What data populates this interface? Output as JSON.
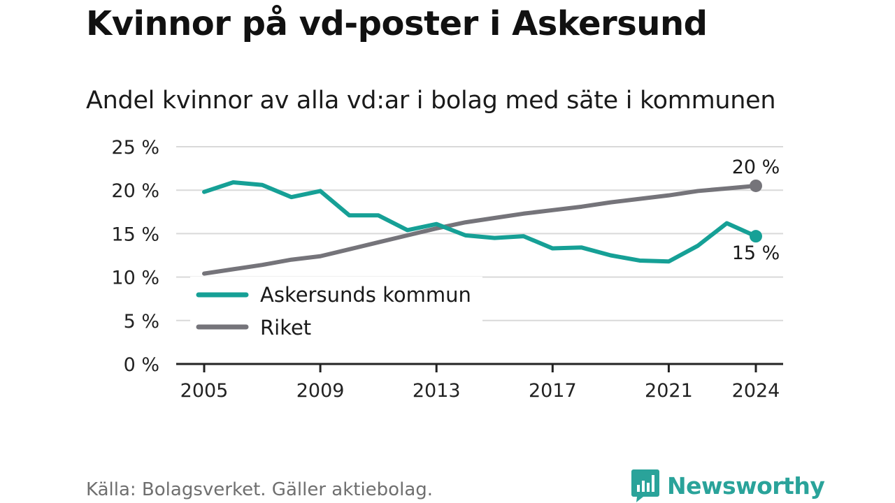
{
  "header": {
    "title": "Kvinnor på vd-poster i Askersund",
    "subtitle": "Andel kvinnor av alla vd:ar i bolag med säte i kommunen"
  },
  "footer": {
    "source": "Källa: Bolagsverket. Gäller aktiebolag.",
    "logo_text": "Newsworthy",
    "logo_icon": "bar-chart-speech-bubble-icon"
  },
  "colors": {
    "askersund": "#16a096",
    "riket": "#75747a",
    "grid": "#d9d9d9",
    "axis": "#222222",
    "brand": "#2aa39a"
  },
  "chart_data": {
    "type": "line",
    "title": "Kvinnor på vd-poster i Askersund",
    "subtitle": "Andel kvinnor av alla vd:ar i bolag med säte i kommunen",
    "x": [
      2005,
      2006,
      2007,
      2008,
      2009,
      2010,
      2011,
      2012,
      2013,
      2014,
      2015,
      2016,
      2017,
      2018,
      2019,
      2020,
      2021,
      2022,
      2023,
      2024
    ],
    "x_ticks": [
      2005,
      2009,
      2013,
      2017,
      2021,
      2024
    ],
    "y_ticks": [
      0,
      5,
      10,
      15,
      20,
      25
    ],
    "y_tick_labels": [
      "0 %",
      "5 %",
      "10 %",
      "15 %",
      "20 %",
      "25 %"
    ],
    "ylim": [
      0,
      25
    ],
    "grid": true,
    "legend_position": "bottom-left",
    "series": [
      {
        "name": "Askersunds kommun",
        "color": "#16a096",
        "values": [
          19.8,
          20.9,
          20.6,
          19.2,
          19.9,
          17.1,
          17.1,
          15.4,
          16.1,
          14.8,
          14.5,
          14.7,
          13.3,
          13.4,
          12.5,
          11.9,
          11.8,
          13.6,
          16.2,
          14.7
        ],
        "end_label": "15 %"
      },
      {
        "name": "Riket",
        "color": "#75747a",
        "values": [
          10.4,
          10.9,
          11.4,
          12.0,
          12.4,
          13.2,
          14.0,
          14.8,
          15.6,
          16.3,
          16.8,
          17.3,
          17.7,
          18.1,
          18.6,
          19.0,
          19.4,
          19.9,
          20.2,
          20.5
        ],
        "end_label": "20 %"
      }
    ]
  }
}
